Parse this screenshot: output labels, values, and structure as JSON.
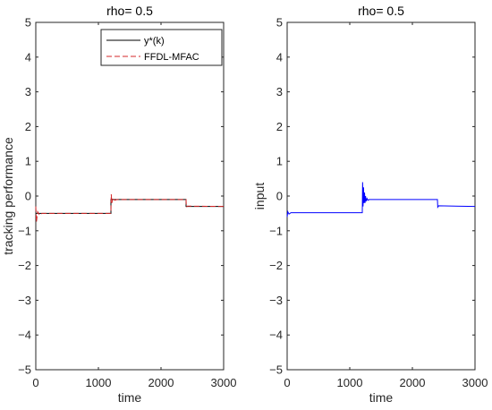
{
  "chart_data": [
    {
      "type": "line",
      "title": "rho= 0.5",
      "xlabel": "time",
      "ylabel": "tracking performance",
      "xlim": [
        0,
        3000
      ],
      "ylim": [
        -5,
        5
      ],
      "xticks": [
        0,
        1000,
        2000,
        3000
      ],
      "yticks": [
        5,
        4,
        3,
        2,
        1,
        0,
        -1,
        -2,
        -3,
        -4,
        -5
      ],
      "legend": {
        "position": "top-right",
        "entries": [
          "y*(k)",
          "FFDL-MFAC"
        ]
      },
      "series": [
        {
          "name": "y*(k)",
          "color": "#000000",
          "style": "solid",
          "x": [
            0,
            1200,
            1200,
            2400,
            2400,
            3000
          ],
          "y": [
            -0.5,
            -0.5,
            -0.1,
            -0.1,
            -0.3,
            -0.3
          ]
        },
        {
          "name": "FFDL-MFAC",
          "color": "#d62728",
          "style": "dashed",
          "x": [
            0,
            10,
            30,
            60,
            100,
            1200,
            1205,
            1215,
            1230,
            1260,
            1300,
            2400,
            2405,
            2420,
            3000
          ],
          "y": [
            -0.3,
            -0.75,
            -0.45,
            -0.55,
            -0.5,
            -0.5,
            0.05,
            -0.2,
            -0.05,
            -0.12,
            -0.1,
            -0.1,
            -0.32,
            -0.29,
            -0.3
          ]
        }
      ]
    },
    {
      "type": "line",
      "title": "rho= 0.5",
      "xlabel": "time",
      "ylabel": "input",
      "xlim": [
        0,
        3000
      ],
      "ylim": [
        -5,
        5
      ],
      "xticks": [
        0,
        1000,
        2000,
        3000
      ],
      "yticks": [
        5,
        4,
        3,
        2,
        1,
        0,
        -1,
        -2,
        -3,
        -4,
        -5
      ],
      "series": [
        {
          "color": "#0000ff",
          "style": "solid",
          "x": [
            0,
            10,
            30,
            60,
            1200,
            1205,
            1212,
            1220,
            1228,
            1236,
            1244,
            1252,
            1262,
            1275,
            1290,
            1310,
            2400,
            2405,
            2420,
            3000
          ],
          "y": [
            -0.6,
            -0.45,
            -0.52,
            -0.48,
            -0.48,
            0.4,
            -0.3,
            0.25,
            -0.2,
            0.1,
            -0.2,
            0.0,
            -0.15,
            -0.07,
            -0.12,
            -0.1,
            -0.1,
            -0.32,
            -0.28,
            -0.3
          ]
        }
      ]
    }
  ]
}
